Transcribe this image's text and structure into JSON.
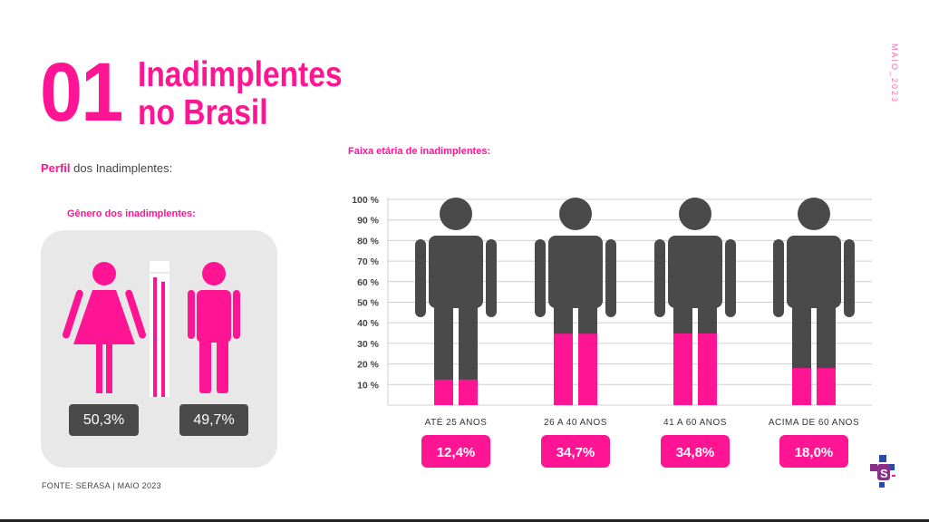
{
  "header": {
    "number": "01",
    "title_line1": "Inadimplentes",
    "title_line2": "no Brasil",
    "side_date": "MAIO_2023"
  },
  "profile": {
    "label_bold": "Perfil",
    "label_rest": " dos Inadimplentes:"
  },
  "gender": {
    "title": "Gênero dos inadimplentes:",
    "female_pct": "50,3%",
    "male_pct": "49,7%",
    "female_value": 50.3,
    "male_value": 49.7
  },
  "source": "FONTE: SERASA |  MAIO 2023",
  "colors": {
    "accent": "#ff1493",
    "figure": "#4a4a4a",
    "panel": "#e8e8e8"
  },
  "chart_data": {
    "type": "bar",
    "title": "Faixa etária de inadimplentes:",
    "categories": [
      "ATÉ 25 ANOS",
      "26 A 40 ANOS",
      "41 A 60 ANOS",
      "ACIMA DE 60 ANOS"
    ],
    "values": [
      12.4,
      34.7,
      34.8,
      18.0
    ],
    "value_labels": [
      "12,4%",
      "34,7%",
      "34,8%",
      "18,0%"
    ],
    "y_ticks": [
      "10 %",
      "20 %",
      "30 %",
      "40 %",
      "50 %",
      "60 %",
      "70 %",
      "80 %",
      "90 %",
      "100 %"
    ],
    "ylim": [
      0,
      100
    ],
    "grid": true
  }
}
